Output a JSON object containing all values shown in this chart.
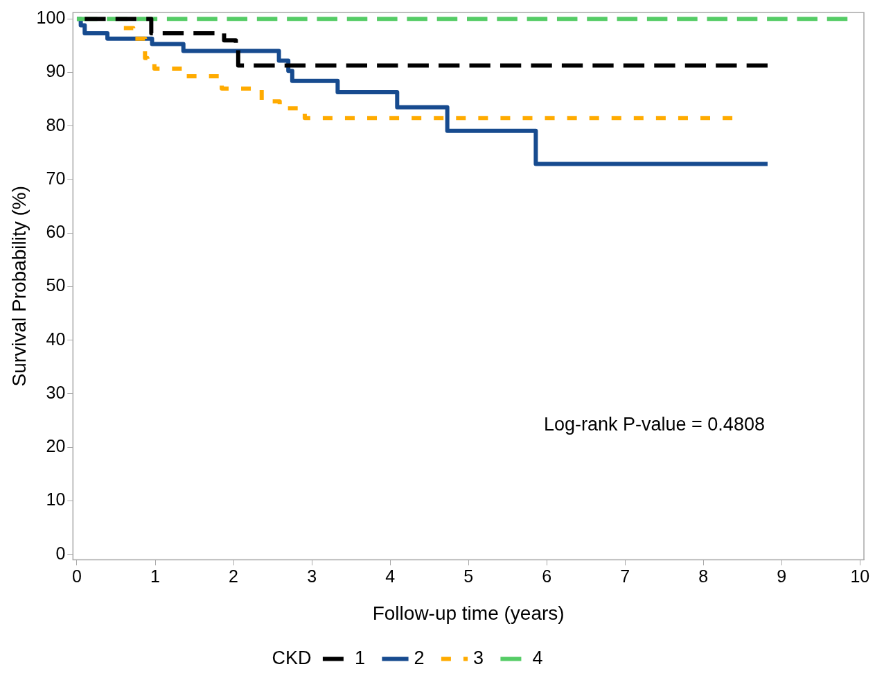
{
  "chart_data": {
    "type": "step",
    "xlabel": "Follow-up time (years)",
    "ylabel": "Survival Probability (%)",
    "legend_title": "CKD",
    "legend": "bottom",
    "grid": false,
    "marker": "none",
    "xlim": [
      -0.05,
      10.05
    ],
    "xticks": [
      0,
      1,
      2,
      3,
      4,
      5,
      6,
      7,
      8,
      9,
      10
    ],
    "ylim": [
      -1,
      101.2
    ],
    "yticks": [
      0,
      10,
      20,
      30,
      40,
      50,
      60,
      70,
      80,
      90,
      100
    ],
    "annotations": [
      "Log-rank P-value = 0.4808"
    ],
    "series": [
      {
        "name": "1",
        "color": "#000000",
        "line_style": "dashed",
        "x": [
          0.1,
          0.95,
          1.88,
          2.03,
          2.06,
          8.82
        ],
        "values": [
          100,
          97.3,
          96.0,
          94.8,
          91.3,
          91.3
        ]
      },
      {
        "name": "2",
        "color": "#174b8f",
        "line_style": "solid",
        "x": [
          0,
          0.05,
          0.1,
          0.39,
          0.96,
          1.36,
          2.58,
          2.7,
          2.75,
          3.33,
          4.09,
          4.73,
          5.86,
          8.82
        ],
        "values": [
          100,
          98.8,
          97.3,
          96.3,
          95.3,
          94.0,
          92.2,
          90.3,
          88.4,
          86.3,
          83.5,
          79.1,
          72.9,
          72.9
        ]
      },
      {
        "name": "3",
        "color": "#ffab00",
        "line_style": "dotted",
        "x": [
          0.6,
          0.72,
          0.87,
          0.9,
          0.99,
          1.39,
          1.85,
          2.36,
          2.59,
          2.91,
          8.37
        ],
        "values": [
          98.3,
          96.3,
          92.7,
          92.2,
          90.7,
          89.3,
          87.0,
          84.6,
          83.3,
          81.5,
          81.5
        ]
      },
      {
        "name": "4",
        "color": "#55cc66",
        "line_style": "dashed",
        "x": [
          0,
          9.84
        ],
        "values": [
          100,
          100
        ]
      }
    ]
  }
}
